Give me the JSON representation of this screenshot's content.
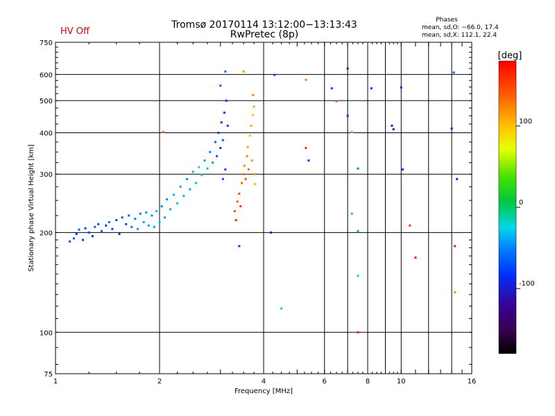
{
  "title_line1": "Tromsø 20170114 13:12:00−13:13:43",
  "title_line2": "RwPretec (8p)",
  "hv_status": "HV Off",
  "hv_status_color": "#cc0000",
  "phases": {
    "heading": "Phases",
    "line_o": "mean, sd,O: −66.0, 17.4",
    "line_x": "mean, sd,X: 112.1, 22.4"
  },
  "chart_data": {
    "type": "scatter",
    "xlabel": "Frequency [MHz]",
    "ylabel": "Stationary phase Virtual Height [km]",
    "x_scale": "log",
    "y_scale": "log",
    "xlim": [
      1,
      16
    ],
    "ylim": [
      75,
      750
    ],
    "x_ticks": [
      1,
      2,
      4,
      6,
      8,
      10,
      16
    ],
    "y_ticks": [
      75,
      100,
      200,
      300,
      400,
      500,
      600,
      750
    ],
    "x_gridlines": [
      2,
      4,
      6,
      7,
      8,
      9,
      10,
      12,
      14
    ],
    "y_gridlines": [
      100,
      200,
      300,
      400,
      500,
      600
    ],
    "colorbar": {
      "label": "[deg]",
      "min": -180,
      "max": 180,
      "ticks": [
        100,
        0,
        -100
      ],
      "palette": "rainbow (black → purple → blue → cyan → green → yellow → red)"
    },
    "series": [
      {
        "trace": "O-mode trace (blue/cyan)",
        "points": [
          [
            1.1,
            188,
            -70
          ],
          [
            1.13,
            192,
            -60
          ],
          [
            1.15,
            198,
            -85
          ],
          [
            1.17,
            204,
            -60
          ],
          [
            1.2,
            190,
            -80
          ],
          [
            1.22,
            206,
            -75
          ],
          [
            1.25,
            200,
            -70
          ],
          [
            1.28,
            195,
            -90
          ],
          [
            1.3,
            208,
            -65
          ],
          [
            1.33,
            212,
            -80
          ],
          [
            1.36,
            202,
            -70
          ],
          [
            1.4,
            210,
            -85
          ],
          [
            1.43,
            215,
            -60
          ],
          [
            1.46,
            205,
            -75
          ],
          [
            1.5,
            218,
            -70
          ],
          [
            1.53,
            198,
            -80
          ],
          [
            1.56,
            222,
            -65
          ],
          [
            1.6,
            212,
            -75
          ],
          [
            1.63,
            225,
            -60
          ],
          [
            1.66,
            208,
            -55
          ],
          [
            1.7,
            220,
            -50
          ],
          [
            1.73,
            205,
            -45
          ],
          [
            1.76,
            228,
            -55
          ],
          [
            1.8,
            215,
            -40
          ],
          [
            1.83,
            230,
            -45
          ],
          [
            1.86,
            210,
            -40
          ],
          [
            1.9,
            225,
            -45
          ],
          [
            1.93,
            208,
            -40
          ],
          [
            1.96,
            232,
            -30
          ],
          [
            2.0,
            215,
            -35
          ],
          [
            2.03,
            240,
            -50
          ],
          [
            2.07,
            222,
            -40
          ],
          [
            2.1,
            252,
            -45
          ],
          [
            2.15,
            235,
            -40
          ],
          [
            2.2,
            260,
            -35
          ],
          [
            2.25,
            245,
            -30
          ],
          [
            2.3,
            275,
            -40
          ],
          [
            2.35,
            258,
            -35
          ],
          [
            2.4,
            290,
            -45
          ],
          [
            2.45,
            270,
            -40
          ],
          [
            2.5,
            305,
            -35
          ],
          [
            2.55,
            282,
            -30
          ],
          [
            2.6,
            315,
            -25
          ],
          [
            2.65,
            298,
            -30
          ],
          [
            2.7,
            330,
            -40
          ],
          [
            2.75,
            312,
            -35
          ],
          [
            2.8,
            350,
            -50
          ],
          [
            2.85,
            325,
            -45
          ],
          [
            2.9,
            375,
            -60
          ],
          [
            2.93,
            340,
            -70
          ],
          [
            2.96,
            400,
            -75
          ],
          [
            3.0,
            360,
            -80
          ],
          [
            3.02,
            430,
            -85
          ],
          [
            3.05,
            380,
            -70
          ],
          [
            3.08,
            460,
            -90
          ],
          [
            3.1,
            310,
            -75
          ],
          [
            3.12,
            500,
            -85
          ],
          [
            3.15,
            420,
            -80
          ],
          [
            3.05,
            290,
            -70
          ],
          [
            3.0,
            555,
            -60
          ]
        ]
      },
      {
        "trace": "X-mode trace (orange/yellow)",
        "points": [
          [
            3.3,
            232,
            150
          ],
          [
            3.33,
            218,
            160
          ],
          [
            3.36,
            248,
            140
          ],
          [
            3.4,
            262,
            150
          ],
          [
            3.43,
            240,
            155
          ],
          [
            3.46,
            282,
            140
          ],
          [
            3.5,
            300,
            130
          ],
          [
            3.52,
            318,
            120
          ],
          [
            3.55,
            290,
            145
          ],
          [
            3.58,
            340,
            125
          ],
          [
            3.6,
            362,
            110
          ],
          [
            3.62,
            310,
            130
          ],
          [
            3.65,
            392,
            100
          ],
          [
            3.68,
            420,
            110
          ],
          [
            3.7,
            330,
            115
          ],
          [
            3.72,
            452,
            100
          ],
          [
            3.75,
            480,
            110
          ],
          [
            3.77,
            300,
            120
          ],
          [
            3.73,
            520,
            130
          ],
          [
            3.78,
            280,
            105
          ]
        ]
      },
      {
        "trace": "Scattered noise",
        "points": [
          [
            2.05,
            402,
            140
          ],
          [
            4.2,
            200,
            -110
          ],
          [
            4.5,
            118,
            -20
          ],
          [
            4.3,
            598,
            -80
          ],
          [
            5.3,
            360,
            160
          ],
          [
            5.4,
            330,
            -80
          ],
          [
            6.3,
            545,
            -80
          ],
          [
            6.5,
            498,
            150
          ],
          [
            7.0,
            450,
            -95
          ],
          [
            7.0,
            625,
            -110
          ],
          [
            7.2,
            402,
            120
          ],
          [
            7.2,
            228,
            -10
          ],
          [
            7.5,
            312,
            -50
          ],
          [
            7.5,
            202,
            -40
          ],
          [
            7.5,
            148,
            -30
          ],
          [
            7.5,
            100,
            170
          ],
          [
            8.2,
            545,
            -90
          ],
          [
            9.4,
            420,
            -100
          ],
          [
            9.5,
            410,
            -105
          ],
          [
            10.0,
            548,
            -100
          ],
          [
            10.1,
            310,
            -85
          ],
          [
            10.6,
            210,
            160
          ],
          [
            11.0,
            168,
            175
          ],
          [
            14.0,
            412,
            -100
          ],
          [
            14.2,
            608,
            -60
          ],
          [
            14.5,
            290,
            -100
          ],
          [
            14.3,
            182,
            170
          ],
          [
            14.3,
            132,
            120
          ],
          [
            3.1,
            612,
            -60
          ],
          [
            3.5,
            612,
            120
          ],
          [
            3.4,
            182,
            -80
          ],
          [
            5.3,
            578,
            130
          ]
        ]
      }
    ]
  }
}
